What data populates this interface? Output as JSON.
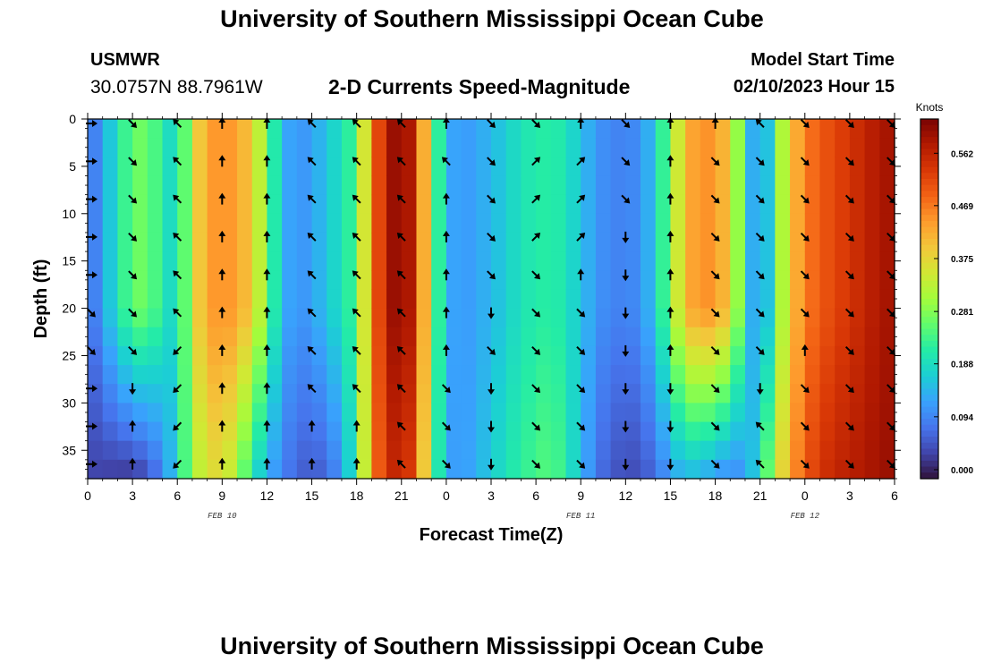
{
  "header": {
    "title": "University of Southern Mississippi Ocean Cube",
    "station": "USMWR",
    "coords": "30.0757N  88.7961W",
    "plot_title": "2-D Currents Speed-Magnitude",
    "model_start_label": "Model Start Time",
    "model_start_value": "02/10/2023 Hour 15"
  },
  "footer": {
    "title": "University of Southern Mississippi Ocean Cube"
  },
  "chart_data": {
    "type": "heatmap",
    "title": "2-D Currents Speed-Magnitude",
    "xlabel": "Forecast Time(Z)",
    "ylabel": "Depth (ft)",
    "x_ticks": [
      "0",
      "3",
      "6",
      "9",
      "12",
      "15",
      "18",
      "21",
      "0",
      "3",
      "6",
      "9",
      "12",
      "15",
      "18",
      "21",
      "0",
      "3",
      "6"
    ],
    "x_range_hours": [
      0,
      54
    ],
    "y_ticks": [
      "0",
      "5",
      "10",
      "15",
      "20",
      "25",
      "30",
      "35"
    ],
    "y_range_ft": [
      0,
      38
    ],
    "date_labels": [
      {
        "text": "FEB 10",
        "hour": 9
      },
      {
        "text": "FEB 11",
        "hour": 33
      },
      {
        "text": "FEB 12",
        "hour": 48
      }
    ],
    "colorbar": {
      "title": "Knots",
      "ticks": [
        "0.000",
        "0.094",
        "0.188",
        "0.281",
        "0.375",
        "0.469",
        "0.562"
      ],
      "range": [
        0,
        0.6
      ],
      "colors": [
        "#30123b",
        "#4145ab",
        "#4675ed",
        "#39a2fc",
        "#1bcfd4",
        "#24eca6",
        "#61fc6c",
        "#a4fc3b",
        "#d1e834",
        "#f3c63a",
        "#fe9b2d",
        "#f36315",
        "#d93806",
        "#b11901",
        "#7a0403"
      ]
    },
    "speed_columns": [
      {
        "hour": 0,
        "speed": 0.06,
        "deep": 0.04
      },
      {
        "hour": 1,
        "speed": 0.14,
        "deep": 0.04
      },
      {
        "hour": 2,
        "speed": 0.19,
        "deep": 0.03
      },
      {
        "hour": 3,
        "speed": 0.27,
        "deep": 0.03
      },
      {
        "hour": 4,
        "speed": 0.26,
        "deep": 0.05
      },
      {
        "hour": 5,
        "speed": 0.22,
        "deep": 0.1
      },
      {
        "hour": 6,
        "speed": 0.16,
        "deep": 0.18
      },
      {
        "hour": 7,
        "speed": 0.35,
        "deep": 0.3
      },
      {
        "hour": 8,
        "speed": 0.42,
        "deep": 0.35
      },
      {
        "hour": 9,
        "speed": 0.44,
        "deep": 0.36
      },
      {
        "hour": 10,
        "speed": 0.42,
        "deep": 0.3
      },
      {
        "hour": 11,
        "speed": 0.38,
        "deep": 0.2
      },
      {
        "hour": 12,
        "speed": 0.27,
        "deep": 0.14
      },
      {
        "hour": 13,
        "speed": 0.15,
        "deep": 0.1
      },
      {
        "hour": 14,
        "speed": 0.11,
        "deep": 0.07
      },
      {
        "hour": 15,
        "speed": 0.13,
        "deep": 0.06
      },
      {
        "hour": 16,
        "speed": 0.16,
        "deep": 0.07
      },
      {
        "hour": 17,
        "speed": 0.2,
        "deep": 0.12
      },
      {
        "hour": 18,
        "speed": 0.24,
        "deep": 0.22
      },
      {
        "hour": 19,
        "speed": 0.45,
        "deep": 0.44
      },
      {
        "hour": 20,
        "speed": 0.55,
        "deep": 0.52
      },
      {
        "hour": 21,
        "speed": 0.6,
        "deep": 0.55
      },
      {
        "hour": 22,
        "speed": 0.52,
        "deep": 0.48
      },
      {
        "hour": 23,
        "speed": 0.3,
        "deep": 0.28
      },
      {
        "hour": 24,
        "speed": 0.14,
        "deep": 0.13
      },
      {
        "hour": 25,
        "speed": 0.12,
        "deep": 0.12
      },
      {
        "hour": 26,
        "speed": 0.13,
        "deep": 0.14
      },
      {
        "hour": 27,
        "speed": 0.15,
        "deep": 0.17
      },
      {
        "hour": 28,
        "speed": 0.17,
        "deep": 0.2
      },
      {
        "hour": 29,
        "speed": 0.2,
        "deep": 0.22
      },
      {
        "hour": 30,
        "speed": 0.21,
        "deep": 0.24
      },
      {
        "hour": 31,
        "speed": 0.22,
        "deep": 0.25
      },
      {
        "hour": 32,
        "speed": 0.2,
        "deep": 0.22
      },
      {
        "hour": 33,
        "speed": 0.16,
        "deep": 0.15
      },
      {
        "hour": 34,
        "speed": 0.12,
        "deep": 0.09
      },
      {
        "hour": 35,
        "speed": 0.1,
        "deep": 0.06
      },
      {
        "hour": 36,
        "speed": 0.1,
        "deep": 0.05
      },
      {
        "hour": 37,
        "speed": 0.11,
        "deep": 0.05
      },
      {
        "hour": 38,
        "speed": 0.17,
        "deep": 0.08
      },
      {
        "hour": 39,
        "speed": 0.28,
        "deep": 0.12
      },
      {
        "hour": 40,
        "speed": 0.4,
        "deep": 0.15
      },
      {
        "hour": 41,
        "speed": 0.44,
        "deep": 0.14
      },
      {
        "hour": 42,
        "speed": 0.43,
        "deep": 0.12
      },
      {
        "hour": 43,
        "speed": 0.38,
        "deep": 0.1
      },
      {
        "hour": 44,
        "speed": 0.2,
        "deep": 0.12
      },
      {
        "hour": 45,
        "speed": 0.08,
        "deep": 0.2
      },
      {
        "hour": 46,
        "speed": 0.24,
        "deep": 0.32
      },
      {
        "hour": 47,
        "speed": 0.38,
        "deep": 0.42
      },
      {
        "hour": 48,
        "speed": 0.45,
        "deep": 0.48
      },
      {
        "hour": 49,
        "speed": 0.48,
        "deep": 0.52
      },
      {
        "hour": 50,
        "speed": 0.5,
        "deep": 0.54
      },
      {
        "hour": 51,
        "speed": 0.52,
        "deep": 0.55
      },
      {
        "hour": 52,
        "speed": 0.54,
        "deep": 0.56
      },
      {
        "hour": 53,
        "speed": 0.56,
        "deep": 0.57
      },
      {
        "hour": 54,
        "speed": 0.57,
        "deep": 0.58
      }
    ],
    "arrow_hours": [
      0,
      3,
      6,
      9,
      12,
      15,
      18,
      21,
      24,
      27,
      30,
      33,
      36,
      39,
      42,
      45,
      48,
      51,
      54
    ],
    "arrow_depths_ft": [
      0,
      4,
      8,
      12,
      16,
      20,
      24,
      28,
      32,
      36
    ],
    "arrow_direction_deg": [
      [
        0,
        45,
        225,
        270,
        270,
        225,
        225,
        225,
        270,
        45,
        45,
        270,
        45,
        270,
        270,
        225,
        45,
        45,
        45
      ],
      [
        0,
        45,
        225,
        270,
        270,
        225,
        225,
        225,
        225,
        45,
        315,
        315,
        45,
        270,
        45,
        45,
        45,
        45,
        45
      ],
      [
        0,
        45,
        225,
        270,
        270,
        225,
        225,
        225,
        270,
        45,
        315,
        315,
        45,
        270,
        45,
        45,
        45,
        45,
        45
      ],
      [
        0,
        45,
        225,
        270,
        270,
        225,
        225,
        225,
        270,
        45,
        315,
        315,
        90,
        270,
        45,
        45,
        45,
        45,
        45
      ],
      [
        0,
        45,
        225,
        270,
        270,
        225,
        225,
        225,
        270,
        45,
        45,
        270,
        90,
        270,
        45,
        45,
        45,
        45,
        45
      ],
      [
        45,
        45,
        225,
        270,
        270,
        225,
        225,
        225,
        270,
        90,
        45,
        45,
        90,
        270,
        45,
        45,
        45,
        45,
        45
      ],
      [
        45,
        45,
        135,
        270,
        270,
        225,
        225,
        225,
        270,
        45,
        45,
        45,
        90,
        270,
        45,
        45,
        270,
        45,
        45
      ],
      [
        0,
        90,
        135,
        270,
        270,
        225,
        225,
        225,
        45,
        90,
        45,
        45,
        90,
        90,
        45,
        90,
        45,
        45,
        45
      ],
      [
        0,
        270,
        135,
        270,
        270,
        270,
        270,
        225,
        45,
        90,
        45,
        45,
        90,
        90,
        45,
        225,
        45,
        45,
        45
      ],
      [
        0,
        270,
        135,
        270,
        270,
        270,
        270,
        225,
        45,
        90,
        45,
        45,
        90,
        90,
        45,
        225,
        45,
        45,
        45
      ]
    ]
  }
}
